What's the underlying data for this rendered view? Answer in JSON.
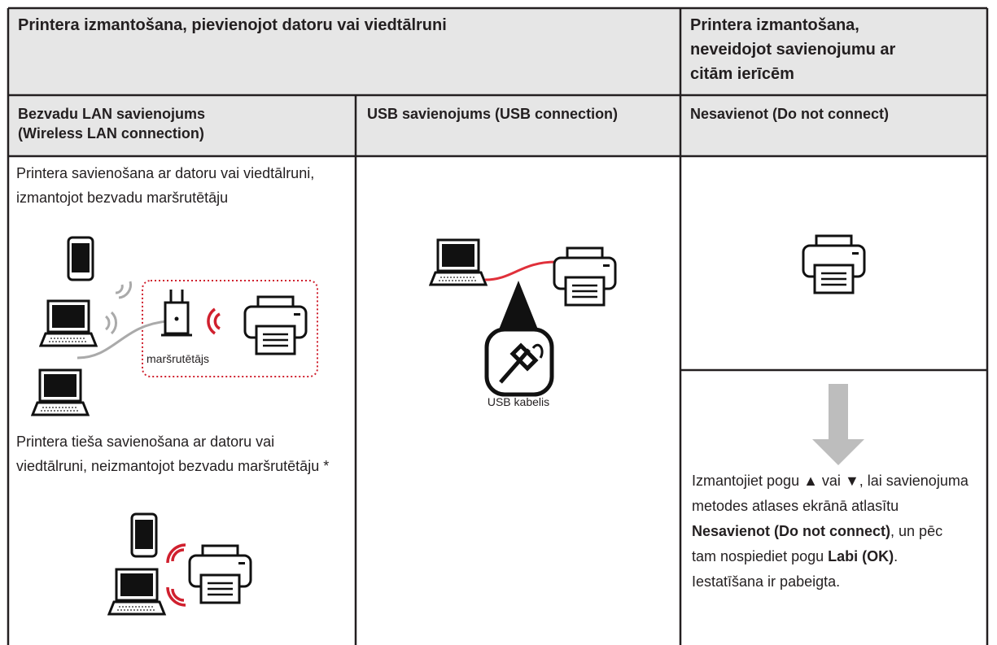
{
  "header": {
    "connected_title": "Printera izmantošana, pievienojot datoru vai viedtālruni",
    "standalone_title": "Printera izmantošana, neveidojot savienojumu ar citām ierīcēm"
  },
  "columns": {
    "wireless": "Bezvadu LAN savienojums (Wireless LAN connection)",
    "usb": "USB savienojums (USB connection)",
    "none": "Nesavienot (Do not connect)"
  },
  "wireless": {
    "router_text": "Printera savienošana ar datoru vai viedtālruni, izmantojot bezvadu maršrutētāju",
    "router_label": "maršrutētājs",
    "direct_text": "Printera tieša savienošana ar datoru vai viedtālruni, neizmantojot bezvadu maršrutētāju *"
  },
  "usb": {
    "cable_label": "USB kabelis"
  },
  "none": {
    "instructions": [
      {
        "text": "Izmantojiet pogu ",
        "bold": false
      },
      {
        "text": "▲",
        "bold": false
      },
      {
        "text": " vai ",
        "bold": false
      },
      {
        "text": "▼",
        "bold": false
      },
      {
        "text": ", lai savienojuma metodes atlases ekrānā atlasītu ",
        "bold": false
      },
      {
        "text": "Nesavienot (Do not connect)",
        "bold": true
      },
      {
        "text": ", un pēc tam nospiediet pogu ",
        "bold": false
      },
      {
        "text": "Labi (OK)",
        "bold": true
      },
      {
        "text": ". Iestatīšana ir pabeigta.",
        "bold": false
      }
    ]
  }
}
